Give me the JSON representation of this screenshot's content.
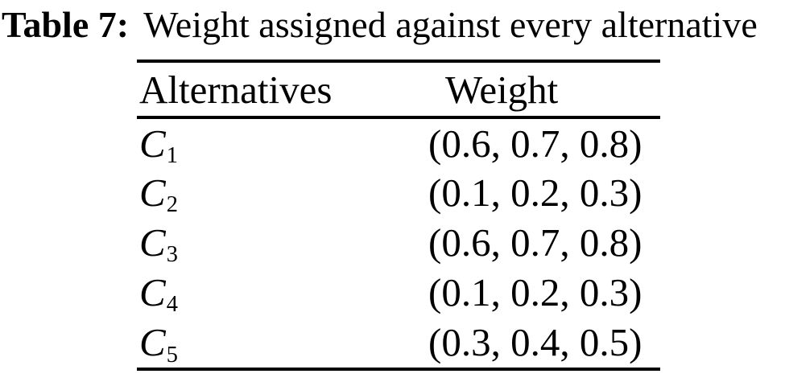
{
  "page": {
    "background": "#ffffff",
    "text_color": "#000000",
    "rule_color": "#000000"
  },
  "caption": {
    "label": "Table 7:",
    "title": "Weight assigned against every alternative"
  },
  "table": {
    "headers": [
      "Alternatives",
      "Weight"
    ],
    "rows": [
      {
        "alternative": "C",
        "subscript": "1",
        "weight": "(0.6, 0.7, 0.8)"
      },
      {
        "alternative": "C",
        "subscript": "2",
        "weight": "(0.1, 0.2, 0.3)"
      },
      {
        "alternative": "C",
        "subscript": "3",
        "weight": "(0.6, 0.7, 0.8)"
      },
      {
        "alternative": "C",
        "subscript": "4",
        "weight": "(0.1, 0.2, 0.3)"
      },
      {
        "alternative": "C",
        "subscript": "5",
        "weight": "(0.3, 0.4, 0.5)"
      }
    ]
  }
}
